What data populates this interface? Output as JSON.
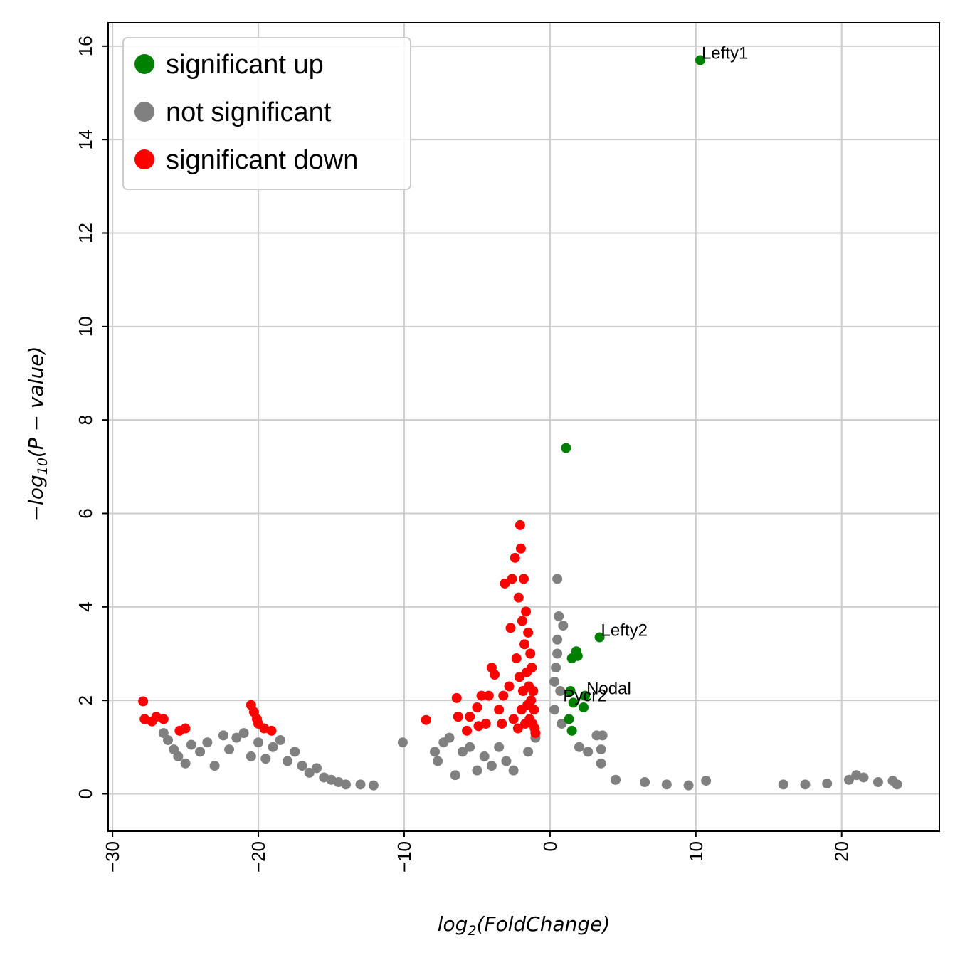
{
  "chart_data": {
    "type": "scatter",
    "title": "",
    "xlabel_base": "log",
    "xlabel_sub": "2",
    "xlabel_arg": "(FoldChange)",
    "ylabel_prefix": "−log",
    "ylabel_sub": "10",
    "ylabel_arg": "(P − value)",
    "xlim": [
      -30.3,
      26.7
    ],
    "ylim": [
      -0.8,
      16.5
    ],
    "xticks": [
      -30,
      -20,
      -10,
      0,
      10,
      20
    ],
    "xtick_labels": [
      "−30",
      "−20",
      "−10",
      "0",
      "10",
      "20"
    ],
    "yticks": [
      0,
      2,
      4,
      6,
      8,
      10,
      12,
      14,
      16
    ],
    "ytick_labels": [
      "0",
      "2",
      "4",
      "6",
      "8",
      "10",
      "12",
      "14",
      "16"
    ],
    "grid": true,
    "legend_position": "top-left",
    "series": [
      {
        "name": "significant up",
        "color": "#008000",
        "points": [
          [
            10.3,
            15.7
          ],
          [
            1.1,
            7.4
          ],
          [
            3.4,
            3.35
          ],
          [
            1.5,
            2.9
          ],
          [
            1.8,
            3.05
          ],
          [
            1.9,
            2.95
          ],
          [
            2.4,
            2.1
          ],
          [
            1.4,
            2.2
          ],
          [
            1.6,
            1.95
          ],
          [
            2.3,
            1.85
          ],
          [
            1.3,
            1.6
          ],
          [
            1.5,
            1.35
          ]
        ]
      },
      {
        "name": "not significant",
        "color": "#808080",
        "points": [
          [
            -26.5,
            1.3
          ],
          [
            -26.2,
            1.15
          ],
          [
            -25.8,
            0.95
          ],
          [
            -25.5,
            0.8
          ],
          [
            -25.0,
            0.65
          ],
          [
            -24.6,
            1.05
          ],
          [
            -24.0,
            0.9
          ],
          [
            -23.5,
            1.1
          ],
          [
            -23.0,
            0.6
          ],
          [
            -22.4,
            1.25
          ],
          [
            -22.0,
            0.95
          ],
          [
            -21.5,
            1.2
          ],
          [
            -21.0,
            1.3
          ],
          [
            -20.5,
            0.8
          ],
          [
            -20.0,
            1.1
          ],
          [
            -19.5,
            0.75
          ],
          [
            -19.0,
            1.0
          ],
          [
            -18.5,
            1.15
          ],
          [
            -18.0,
            0.7
          ],
          [
            -17.5,
            0.9
          ],
          [
            -17.0,
            0.6
          ],
          [
            -16.5,
            0.45
          ],
          [
            -16.0,
            0.55
          ],
          [
            -15.5,
            0.35
          ],
          [
            -15.0,
            0.3
          ],
          [
            -14.5,
            0.25
          ],
          [
            -14.0,
            0.2
          ],
          [
            -13.0,
            0.2
          ],
          [
            -12.1,
            0.18
          ],
          [
            -10.1,
            1.1
          ],
          [
            -7.9,
            0.9
          ],
          [
            -7.7,
            0.7
          ],
          [
            -7.3,
            1.1
          ],
          [
            -6.9,
            1.2
          ],
          [
            -6.5,
            0.4
          ],
          [
            -6.0,
            0.9
          ],
          [
            -5.5,
            1.0
          ],
          [
            -5.0,
            0.5
          ],
          [
            -4.5,
            0.8
          ],
          [
            -4.0,
            0.6
          ],
          [
            -3.5,
            1.0
          ],
          [
            -3.0,
            0.7
          ],
          [
            -2.5,
            0.5
          ],
          [
            -1.5,
            0.9
          ],
          [
            -1.0,
            1.2
          ],
          [
            0.5,
            4.6
          ],
          [
            0.6,
            3.8
          ],
          [
            0.5,
            3.3
          ],
          [
            0.9,
            3.6
          ],
          [
            0.5,
            3.0
          ],
          [
            0.4,
            2.7
          ],
          [
            0.3,
            2.4
          ],
          [
            0.7,
            2.2
          ],
          [
            0.3,
            1.8
          ],
          [
            0.8,
            1.5
          ],
          [
            3.2,
            1.25
          ],
          [
            3.6,
            1.25
          ],
          [
            3.5,
            0.95
          ],
          [
            2.6,
            0.9
          ],
          [
            3.5,
            0.65
          ],
          [
            2.0,
            1.0
          ],
          [
            4.5,
            0.3
          ],
          [
            6.5,
            0.25
          ],
          [
            8.0,
            0.2
          ],
          [
            9.5,
            0.18
          ],
          [
            10.7,
            0.28
          ],
          [
            16.0,
            0.2
          ],
          [
            17.5,
            0.2
          ],
          [
            19.0,
            0.22
          ],
          [
            20.5,
            0.3
          ],
          [
            21.0,
            0.4
          ],
          [
            21.5,
            0.35
          ],
          [
            22.5,
            0.25
          ],
          [
            23.5,
            0.28
          ],
          [
            23.8,
            0.2
          ]
        ]
      },
      {
        "name": "significant down",
        "color": "#ff0000",
        "points": [
          [
            -27.9,
            1.98
          ],
          [
            -27.8,
            1.6
          ],
          [
            -27.3,
            1.55
          ],
          [
            -27.0,
            1.65
          ],
          [
            -26.5,
            1.6
          ],
          [
            -25.4,
            1.35
          ],
          [
            -25.0,
            1.4
          ],
          [
            -20.5,
            1.9
          ],
          [
            -20.3,
            1.75
          ],
          [
            -20.1,
            1.6
          ],
          [
            -20.0,
            1.5
          ],
          [
            -19.6,
            1.4
          ],
          [
            -19.1,
            1.35
          ],
          [
            -8.5,
            1.58
          ],
          [
            -6.4,
            2.05
          ],
          [
            -6.3,
            1.65
          ],
          [
            -5.7,
            1.35
          ],
          [
            -5.5,
            1.65
          ],
          [
            -5.0,
            1.85
          ],
          [
            -4.9,
            1.45
          ],
          [
            -4.7,
            2.1
          ],
          [
            -4.4,
            1.5
          ],
          [
            -4.2,
            2.1
          ],
          [
            -4.0,
            2.7
          ],
          [
            -3.8,
            2.55
          ],
          [
            -3.5,
            1.8
          ],
          [
            -3.3,
            1.5
          ],
          [
            -3.2,
            2.1
          ],
          [
            -3.1,
            4.5
          ],
          [
            -2.8,
            2.3
          ],
          [
            -2.7,
            3.55
          ],
          [
            -2.6,
            4.6
          ],
          [
            -2.5,
            1.6
          ],
          [
            -2.4,
            5.05
          ],
          [
            -2.3,
            2.9
          ],
          [
            -2.2,
            1.4
          ],
          [
            -2.15,
            4.2
          ],
          [
            -2.1,
            2.5
          ],
          [
            -2.05,
            5.75
          ],
          [
            -2.0,
            5.25
          ],
          [
            -1.95,
            1.8
          ],
          [
            -1.9,
            3.7
          ],
          [
            -1.85,
            2.2
          ],
          [
            -1.8,
            4.6
          ],
          [
            -1.75,
            3.2
          ],
          [
            -1.7,
            1.5
          ],
          [
            -1.65,
            3.9
          ],
          [
            -1.6,
            2.6
          ],
          [
            -1.55,
            1.9
          ],
          [
            -1.5,
            3.45
          ],
          [
            -1.45,
            2.3
          ],
          [
            -1.4,
            1.6
          ],
          [
            -1.35,
            3.0
          ],
          [
            -1.3,
            2.0
          ],
          [
            -1.25,
            2.7
          ],
          [
            -1.2,
            1.5
          ],
          [
            -1.15,
            2.2
          ],
          [
            -1.1,
            1.8
          ],
          [
            -1.05,
            1.4
          ],
          [
            -1.0,
            1.3
          ]
        ]
      }
    ],
    "annotations": [
      {
        "text": "Lefty1",
        "x": 10.3,
        "y": 15.7
      },
      {
        "text": "Lefty2",
        "x": 3.4,
        "y": 3.35
      },
      {
        "text": "Nodal",
        "x": 2.4,
        "y": 2.1
      },
      {
        "text": "Pycr2",
        "x": 0.8,
        "y": 1.95
      }
    ]
  }
}
